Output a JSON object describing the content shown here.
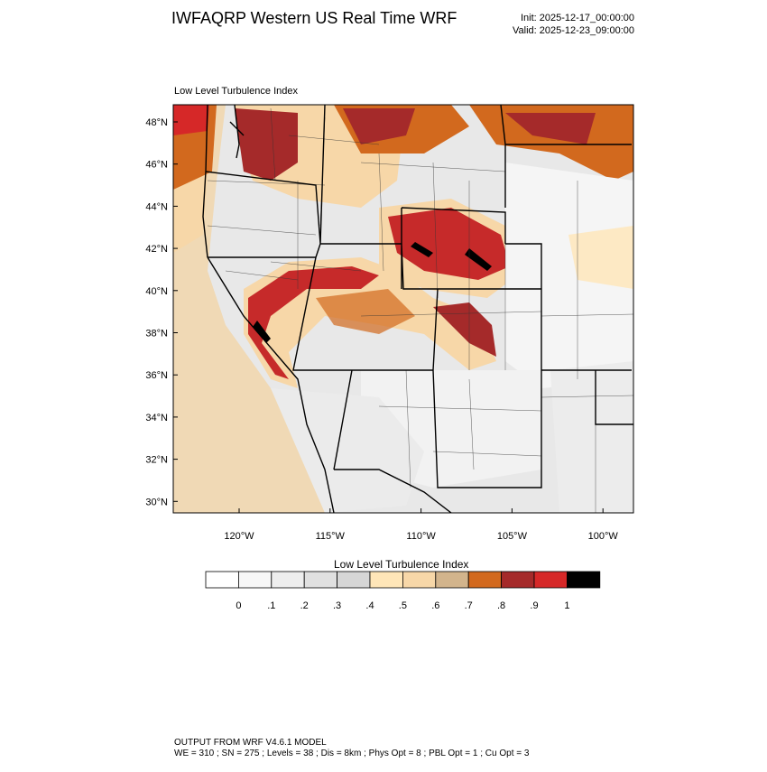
{
  "header": {
    "title": "IWFAQRP Western US Real Time WRF",
    "init": "Init: 2025-12-17_00:00:00",
    "valid": "Valid: 2025-12-23_09:00:00"
  },
  "map": {
    "subtitle": "Low Level Turbulence Index",
    "lat_labels": [
      "48°N",
      "46°N",
      "44°N",
      "42°N",
      "40°N",
      "38°N",
      "36°N",
      "34°N",
      "32°N",
      "30°N"
    ],
    "lon_labels": [
      "120°W",
      "115°W",
      "110°W",
      "105°W",
      "100°W"
    ]
  },
  "colorbar": {
    "title": "Low Level Turbulence Index",
    "labels": [
      "0",
      ".1",
      ".2",
      ".3",
      ".4",
      ".5",
      ".6",
      ".7",
      ".8",
      ".9",
      "1"
    ],
    "colors": [
      "#ffffff",
      "#f7f7f7",
      "#eeeeee",
      "#e0e0e0",
      "#d6d6d6",
      "#ffe6b8",
      "#f7d7a8",
      "#d2b48c",
      "#d2691e",
      "#a52a2a",
      "#d62828",
      "#000000"
    ]
  },
  "footer": {
    "line1": "OUTPUT FROM WRF V4.6.1 MODEL",
    "line2": "WE = 310 ; SN = 275 ; Levels = 38 ; Dis = 8km ; Phys Opt = 8 ; PBL Opt = 1 ; Cu Opt = 3"
  }
}
